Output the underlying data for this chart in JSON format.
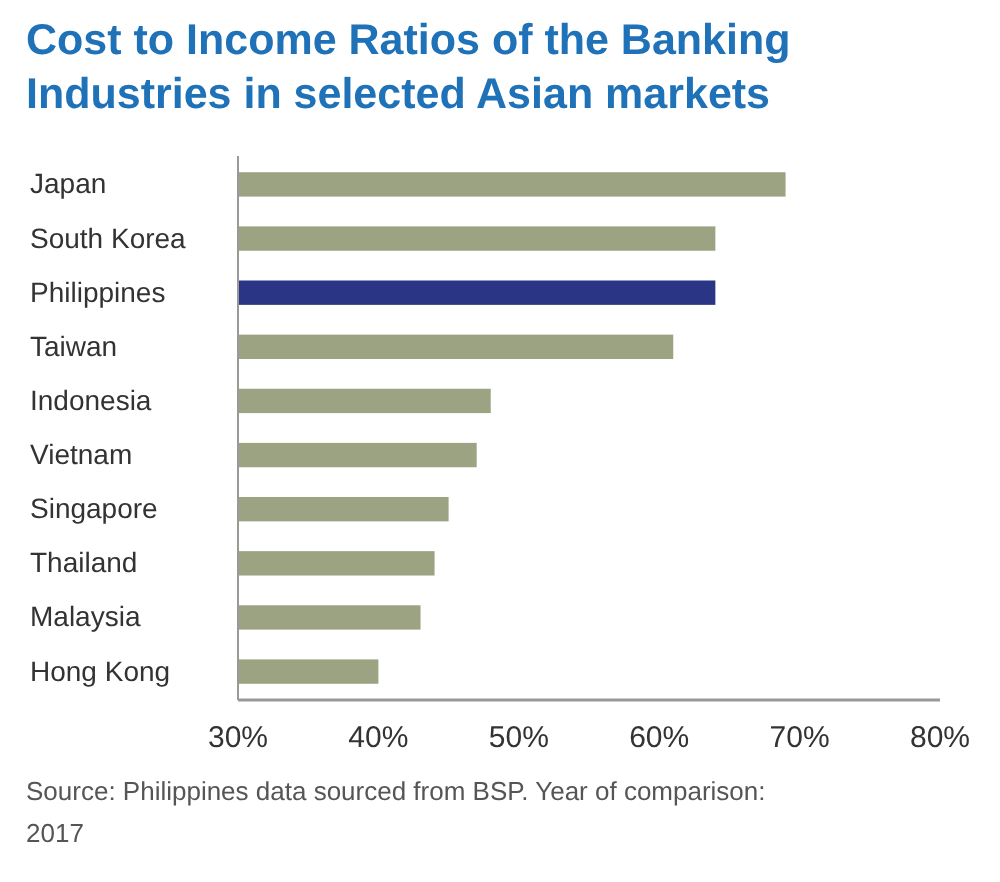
{
  "chart_data": {
    "type": "bar",
    "orientation": "horizontal",
    "title": "Cost to Income Ratios of the Banking Industries in selected Asian markets",
    "categories": [
      "Japan",
      "South Korea",
      "Philippines",
      "Taiwan",
      "Indonesia",
      "Vietnam",
      "Singapore",
      "Thailand",
      "Malaysia",
      "Hong Kong"
    ],
    "values": [
      69,
      64,
      64,
      61,
      48,
      47,
      45,
      44,
      43,
      40
    ],
    "colors": [
      "#9ca383",
      "#9ca383",
      "#2b3585",
      "#9ca383",
      "#9ca383",
      "#9ca383",
      "#9ca383",
      "#9ca383",
      "#9ca383",
      "#9ca383"
    ],
    "xlim": [
      30,
      80
    ],
    "xticks": [
      {
        "value": 30,
        "label": "30%"
      },
      {
        "value": 40,
        "label": "40%"
      },
      {
        "value": 50,
        "label": "50%"
      },
      {
        "value": 60,
        "label": "60%"
      },
      {
        "value": 70,
        "label": "70%"
      },
      {
        "value": 80,
        "label": "80%"
      }
    ],
    "annotations": [
      "Source: Philippines data sourced from BSP. Year of comparison: 2017"
    ]
  }
}
